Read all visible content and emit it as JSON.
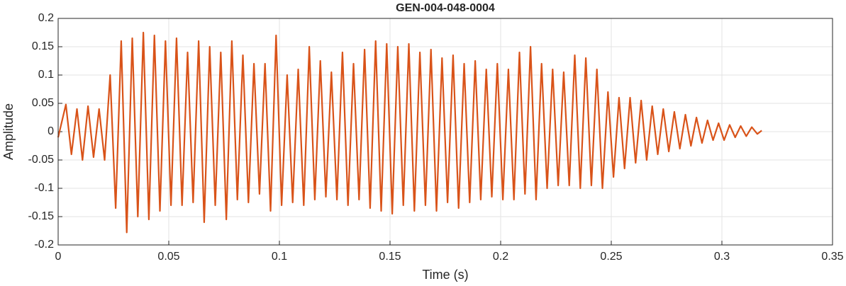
{
  "chart_data": {
    "type": "line",
    "title": "GEN-004-048-0004",
    "xlabel": "Time (s)",
    "ylabel": "Amplitude",
    "color": "#D95319",
    "grid": true,
    "xlim": [
      0,
      0.35
    ],
    "xticks": [
      0,
      0.05,
      0.1,
      0.15,
      0.2,
      0.25,
      0.3,
      0.35
    ],
    "ylim": [
      -0.2,
      0.2
    ],
    "yticks": [
      -0.2,
      -0.15,
      -0.1,
      -0.05,
      0,
      0.05,
      0.1,
      0.15,
      0.2
    ],
    "x": [
      0,
      0.0035,
      0.006,
      0.0085,
      0.011,
      0.0135,
      0.016,
      0.0185,
      0.021,
      0.0235,
      0.026,
      0.0285,
      0.031,
      0.0335,
      0.036,
      0.0385,
      0.041,
      0.0435,
      0.046,
      0.0485,
      0.051,
      0.0535,
      0.056,
      0.0585,
      0.061,
      0.0635,
      0.066,
      0.0685,
      0.071,
      0.0735,
      0.076,
      0.0785,
      0.081,
      0.0835,
      0.086,
      0.0885,
      0.091,
      0.0935,
      0.096,
      0.0985,
      0.101,
      0.1035,
      0.106,
      0.1085,
      0.111,
      0.1135,
      0.116,
      0.1185,
      0.121,
      0.1235,
      0.126,
      0.1285,
      0.131,
      0.1335,
      0.136,
      0.1385,
      0.141,
      0.1435,
      0.146,
      0.1485,
      0.151,
      0.1535,
      0.156,
      0.1585,
      0.161,
      0.1635,
      0.166,
      0.1685,
      0.171,
      0.1735,
      0.176,
      0.1785,
      0.181,
      0.1835,
      0.186,
      0.1885,
      0.191,
      0.1935,
      0.196,
      0.1985,
      0.201,
      0.2035,
      0.206,
      0.2085,
      0.211,
      0.2135,
      0.216,
      0.2185,
      0.221,
      0.2235,
      0.226,
      0.2285,
      0.231,
      0.2335,
      0.236,
      0.2385,
      0.241,
      0.2435,
      0.246,
      0.2485,
      0.251,
      0.2535,
      0.256,
      0.2585,
      0.261,
      0.2635,
      0.266,
      0.2685,
      0.271,
      0.2735,
      0.276,
      0.2785,
      0.281,
      0.2835,
      0.286,
      0.2885,
      0.291,
      0.2935,
      0.296,
      0.2985,
      0.301,
      0.3035,
      0.306,
      0.3085,
      0.311,
      0.3135,
      0.316,
      0.318
    ],
    "values": [
      -0.01,
      0.048,
      -0.04,
      0.04,
      -0.05,
      0.045,
      -0.045,
      0.04,
      -0.05,
      0.1,
      -0.135,
      0.16,
      -0.178,
      0.165,
      -0.15,
      0.175,
      -0.155,
      0.17,
      -0.14,
      0.16,
      -0.13,
      0.165,
      -0.13,
      0.14,
      -0.125,
      0.16,
      -0.16,
      0.15,
      -0.13,
      0.14,
      -0.155,
      0.16,
      -0.12,
      0.135,
      -0.125,
      0.12,
      -0.11,
      0.12,
      -0.14,
      0.17,
      -0.13,
      0.1,
      -0.125,
      0.11,
      -0.13,
      0.15,
      -0.12,
      0.125,
      -0.115,
      0.105,
      -0.12,
      0.14,
      -0.13,
      0.12,
      -0.12,
      0.145,
      -0.135,
      0.16,
      -0.14,
      0.155,
      -0.145,
      0.15,
      -0.13,
      0.155,
      -0.14,
      0.14,
      -0.13,
      0.145,
      -0.14,
      0.13,
      -0.125,
      0.135,
      -0.135,
      0.12,
      -0.125,
      0.125,
      -0.12,
      0.11,
      -0.115,
      0.12,
      -0.12,
      0.11,
      -0.12,
      0.14,
      -0.11,
      0.15,
      -0.12,
      0.12,
      -0.1,
      0.11,
      -0.095,
      0.105,
      -0.095,
      0.135,
      -0.1,
      0.13,
      -0.095,
      0.11,
      -0.1,
      0.07,
      -0.08,
      0.06,
      -0.065,
      0.06,
      -0.055,
      0.055,
      -0.05,
      0.045,
      -0.04,
      0.04,
      -0.035,
      0.035,
      -0.03,
      0.03,
      -0.025,
      0.025,
      -0.02,
      0.02,
      -0.015,
      0.015,
      -0.015,
      0.012,
      -0.01,
      0.01,
      -0.008,
      0.008,
      -0.004,
      0.002
    ]
  }
}
